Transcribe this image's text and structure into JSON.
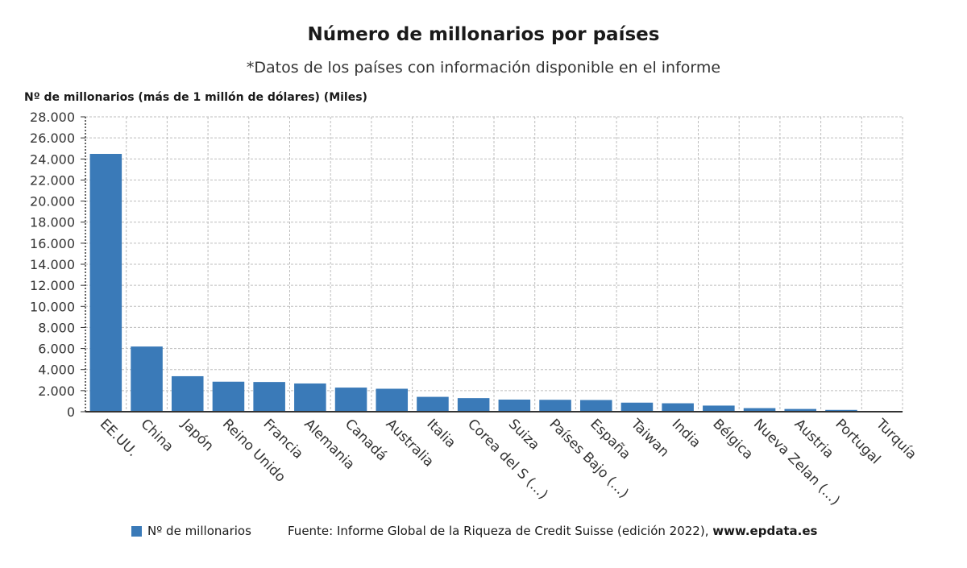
{
  "chart_data": {
    "type": "bar",
    "title": "Número de millonarios por países",
    "subtitle": "*Datos de los países con información disponible en el informe",
    "ylabel": "Nº de millonarios (más de 1 millón de dólares) (Miles)",
    "xlabel": "",
    "ylim": [
      0,
      28000
    ],
    "yticks": [
      0,
      2000,
      4000,
      6000,
      8000,
      10000,
      12000,
      14000,
      16000,
      18000,
      20000,
      22000,
      24000,
      26000,
      28000
    ],
    "ytick_labels": [
      "0",
      "2.000",
      "4.000",
      "6.000",
      "8.000",
      "10.000",
      "12.000",
      "14.000",
      "16.000",
      "18.000",
      "20.000",
      "22.000",
      "24.000",
      "26.000",
      "28.000"
    ],
    "categories": [
      "EE.UU.",
      "China",
      "Japón",
      "Reino Unido",
      "Francia",
      "Alemania",
      "Canadá",
      "Australia",
      "Italia",
      "Corea del S (...)",
      "Suiza",
      "Países Bajo (...)",
      "España",
      "Taiwan",
      "India",
      "Bélgica",
      "Nueva Zelan (...)",
      "Austria",
      "Portugal",
      "Turquía"
    ],
    "series": [
      {
        "name": "Nº de millonarios",
        "color": "#3a7ab8",
        "values": [
          24480,
          6190,
          3370,
          2850,
          2820,
          2680,
          2290,
          2180,
          1410,
          1290,
          1150,
          1130,
          1110,
          860,
          800,
          580,
          340,
          260,
          170,
          70
        ]
      }
    ],
    "grid": true,
    "legend_position": "bottom-left"
  },
  "legend": {
    "label": "Nº de millonarios",
    "color": "#3a7ab8"
  },
  "source": {
    "text": "Fuente: Informe Global de la Riqueza de Credit Suisse (edición 2022), ",
    "site": "www.epdata.es"
  }
}
